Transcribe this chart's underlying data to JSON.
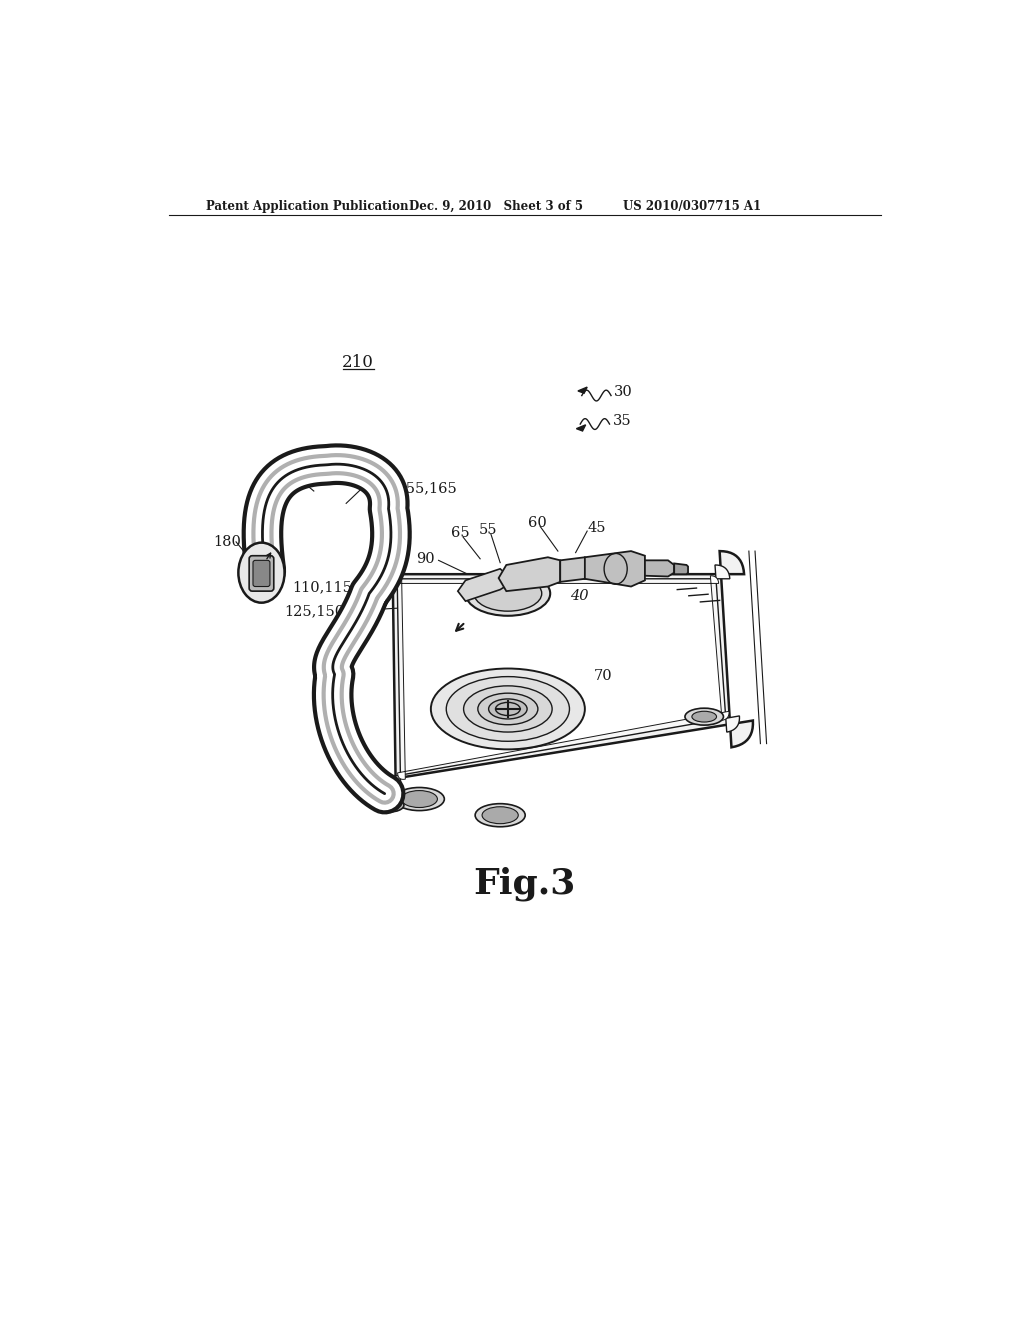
{
  "bg_color": "#ffffff",
  "line_color": "#1a1a1a",
  "header_left": "Patent Application Publication",
  "header_mid": "Dec. 9, 2010   Sheet 3 of 5",
  "header_right": "US 2010/0307715 A1",
  "fig_label": "Fig.3",
  "tube_lw_outer": 28,
  "tube_lw_white": 22,
  "tube_lw_mid": 14,
  "tube_lw_inner_white": 8,
  "tube_lw_core": 2
}
